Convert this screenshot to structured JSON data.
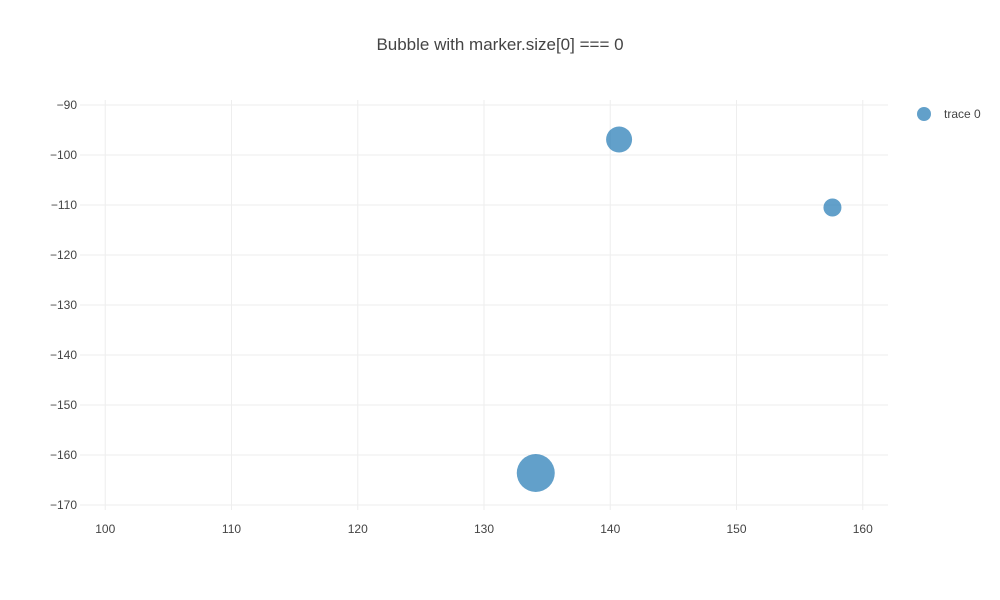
{
  "chart_data": {
    "type": "scatter",
    "title": "Bubble with marker.size[0] === 0",
    "xlabel": "",
    "ylabel": "",
    "xlim": [
      98,
      162
    ],
    "ylim": [
      -172,
      -88
    ],
    "xticks": [
      100,
      110,
      120,
      130,
      140,
      150,
      160
    ],
    "yticks": [
      -90,
      -100,
      -110,
      -120,
      -130,
      -140,
      -150,
      -160,
      -170
    ],
    "ytick_labels": [
      "−90",
      "−100",
      "−110",
      "−120",
      "−130",
      "−140",
      "−150",
      "−160",
      "−170"
    ],
    "grid": true,
    "legend_position": "top-right",
    "series": [
      {
        "name": "trace 0",
        "color": "#1f77b4",
        "opacity": 0.7,
        "points": [
          {
            "x": 134.1,
            "y": -163.6,
            "size": 38
          },
          {
            "x": 140.7,
            "y": -96.9,
            "size": 26
          },
          {
            "x": 157.6,
            "y": -110.5,
            "size": 18
          }
        ]
      }
    ]
  }
}
